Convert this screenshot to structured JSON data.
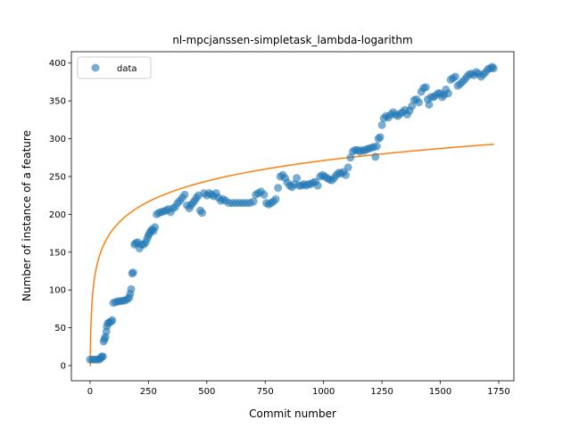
{
  "chart_data": {
    "type": "scatter",
    "title": "nl-mpcjanssen-simpletask_lambda-logarithm",
    "xlabel": "Commit number",
    "ylabel": "Number of instance of a feature",
    "xlim": [
      -80,
      1815
    ],
    "ylim": [
      -20,
      415
    ],
    "xticks": [
      0,
      250,
      500,
      750,
      1000,
      1250,
      1500,
      1750
    ],
    "yticks": [
      0,
      50,
      100,
      150,
      200,
      250,
      300,
      350,
      400
    ],
    "grid": false,
    "legend": {
      "placement": "top-left",
      "entries": [
        "data"
      ]
    },
    "colors": {
      "data": "#1f77b4",
      "fit": "#ff7f0e"
    },
    "series": [
      {
        "name": "data",
        "kind": "scatter",
        "points": [
          [
            0,
            8
          ],
          [
            10,
            8
          ],
          [
            20,
            8
          ],
          [
            30,
            8
          ],
          [
            40,
            8
          ],
          [
            45,
            10
          ],
          [
            50,
            12
          ],
          [
            55,
            12
          ],
          [
            58,
            32
          ],
          [
            62,
            35
          ],
          [
            66,
            38
          ],
          [
            70,
            45
          ],
          [
            72,
            52
          ],
          [
            76,
            56
          ],
          [
            82,
            57
          ],
          [
            90,
            58
          ],
          [
            95,
            60
          ],
          [
            100,
            83
          ],
          [
            110,
            84
          ],
          [
            120,
            85
          ],
          [
            130,
            85
          ],
          [
            140,
            86
          ],
          [
            150,
            86
          ],
          [
            160,
            88
          ],
          [
            168,
            90
          ],
          [
            172,
            95
          ],
          [
            176,
            101
          ],
          [
            180,
            122
          ],
          [
            185,
            123
          ],
          [
            190,
            160
          ],
          [
            196,
            162
          ],
          [
            204,
            163
          ],
          [
            212,
            155
          ],
          [
            220,
            160
          ],
          [
            230,
            160
          ],
          [
            238,
            163
          ],
          [
            245,
            168
          ],
          [
            250,
            172
          ],
          [
            255,
            175
          ],
          [
            260,
            178
          ],
          [
            266,
            180
          ],
          [
            272,
            178
          ],
          [
            278,
            183
          ],
          [
            285,
            200
          ],
          [
            295,
            202
          ],
          [
            305,
            203
          ],
          [
            315,
            204
          ],
          [
            325,
            205
          ],
          [
            335,
            207
          ],
          [
            345,
            203
          ],
          [
            355,
            208
          ],
          [
            365,
            210
          ],
          [
            375,
            215
          ],
          [
            385,
            218
          ],
          [
            395,
            222
          ],
          [
            405,
            226
          ],
          [
            415,
            212
          ],
          [
            425,
            208
          ],
          [
            432,
            212
          ],
          [
            440,
            215
          ],
          [
            448,
            218
          ],
          [
            456,
            222
          ],
          [
            464,
            225
          ],
          [
            472,
            205
          ],
          [
            480,
            202
          ],
          [
            488,
            228
          ],
          [
            500,
            225
          ],
          [
            510,
            228
          ],
          [
            520,
            226
          ],
          [
            530,
            224
          ],
          [
            540,
            228
          ],
          [
            550,
            222
          ],
          [
            560,
            218
          ],
          [
            570,
            220
          ],
          [
            580,
            218
          ],
          [
            595,
            215
          ],
          [
            610,
            215
          ],
          [
            625,
            215
          ],
          [
            640,
            215
          ],
          [
            655,
            215
          ],
          [
            670,
            215
          ],
          [
            685,
            215
          ],
          [
            700,
            217
          ],
          [
            710,
            226
          ],
          [
            720,
            228
          ],
          [
            732,
            230
          ],
          [
            745,
            226
          ],
          [
            755,
            215
          ],
          [
            765,
            213
          ],
          [
            775,
            215
          ],
          [
            785,
            217
          ],
          [
            795,
            220
          ],
          [
            805,
            235
          ],
          [
            815,
            250
          ],
          [
            825,
            252
          ],
          [
            835,
            248
          ],
          [
            845,
            242
          ],
          [
            855,
            238
          ],
          [
            865,
            236
          ],
          [
            875,
            240
          ],
          [
            885,
            248
          ],
          [
            895,
            238
          ],
          [
            905,
            238
          ],
          [
            915,
            240
          ],
          [
            925,
            238
          ],
          [
            935,
            240
          ],
          [
            945,
            240
          ],
          [
            955,
            242
          ],
          [
            965,
            243
          ],
          [
            975,
            238
          ],
          [
            985,
            250
          ],
          [
            995,
            252
          ],
          [
            1005,
            250
          ],
          [
            1015,
            248
          ],
          [
            1025,
            246
          ],
          [
            1035,
            245
          ],
          [
            1045,
            248
          ],
          [
            1055,
            252
          ],
          [
            1065,
            255
          ],
          [
            1075,
            254
          ],
          [
            1085,
            256
          ],
          [
            1095,
            252
          ],
          [
            1105,
            262
          ],
          [
            1115,
            275
          ],
          [
            1125,
            283
          ],
          [
            1135,
            285
          ],
          [
            1145,
            285
          ],
          [
            1155,
            283
          ],
          [
            1165,
            285
          ],
          [
            1175,
            284
          ],
          [
            1185,
            286
          ],
          [
            1195,
            287
          ],
          [
            1205,
            288
          ],
          [
            1215,
            289
          ],
          [
            1222,
            276
          ],
          [
            1228,
            290
          ],
          [
            1235,
            300
          ],
          [
            1242,
            302
          ],
          [
            1250,
            318
          ],
          [
            1258,
            327
          ],
          [
            1268,
            330
          ],
          [
            1278,
            328
          ],
          [
            1288,
            332
          ],
          [
            1298,
            335
          ],
          [
            1308,
            332
          ],
          [
            1318,
            330
          ],
          [
            1328,
            333
          ],
          [
            1338,
            335
          ],
          [
            1348,
            338
          ],
          [
            1358,
            332
          ],
          [
            1368,
            337
          ],
          [
            1378,
            343
          ],
          [
            1388,
            351
          ],
          [
            1398,
            352
          ],
          [
            1408,
            348
          ],
          [
            1418,
            362
          ],
          [
            1428,
            367
          ],
          [
            1438,
            368
          ],
          [
            1446,
            352
          ],
          [
            1452,
            345
          ],
          [
            1460,
            355
          ],
          [
            1470,
            355
          ],
          [
            1480,
            357
          ],
          [
            1490,
            360
          ],
          [
            1500,
            360
          ],
          [
            1508,
            355
          ],
          [
            1516,
            358
          ],
          [
            1524,
            365
          ],
          [
            1534,
            360
          ],
          [
            1544,
            378
          ],
          [
            1554,
            380
          ],
          [
            1564,
            382
          ],
          [
            1574,
            370
          ],
          [
            1584,
            372
          ],
          [
            1594,
            375
          ],
          [
            1604,
            378
          ],
          [
            1614,
            382
          ],
          [
            1624,
            385
          ],
          [
            1634,
            386
          ],
          [
            1644,
            384
          ],
          [
            1654,
            388
          ],
          [
            1664,
            386
          ],
          [
            1674,
            382
          ],
          [
            1684,
            385
          ],
          [
            1694,
            388
          ],
          [
            1704,
            392
          ],
          [
            1714,
            393
          ],
          [
            1722,
            395
          ],
          [
            1728,
            393
          ]
        ]
      },
      {
        "kind": "line",
        "model": "a*ln(x)+b",
        "a": 39.25,
        "b": 0,
        "x_range": [
          1,
          1730
        ]
      }
    ]
  }
}
